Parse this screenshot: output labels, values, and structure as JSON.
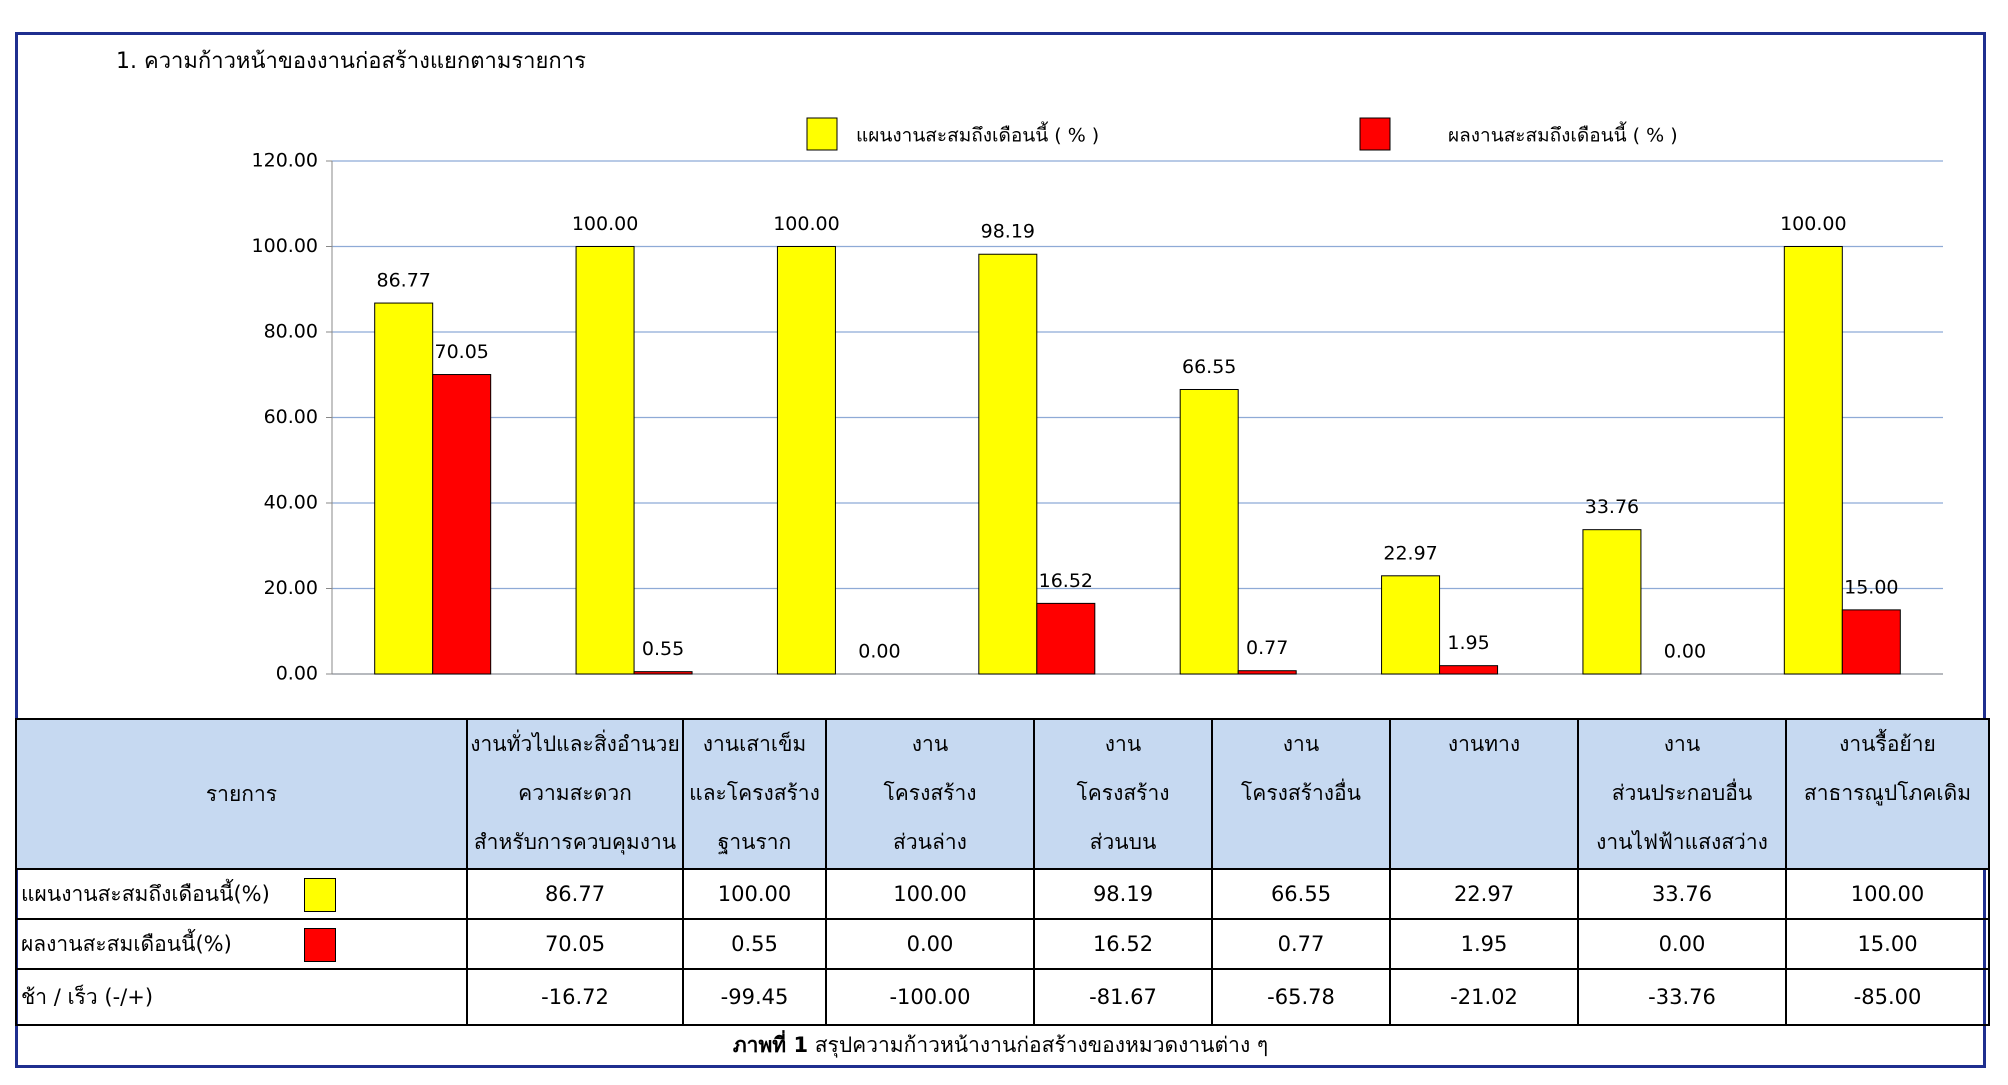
{
  "chart_data": {
    "type": "bar",
    "title": "1. ความก้าวหน้าของงานก่อสร้างแยกตามรายการ",
    "categories": [
      [
        "งานทั่วไปและสิ่งอำนวย",
        "ความสะดวก",
        "สำหรับการควบคุมงาน"
      ],
      [
        "งานเสาเข็ม",
        "และโครงสร้าง",
        "ฐานราก"
      ],
      [
        "งาน",
        "โครงสร้าง",
        "ส่วนล่าง"
      ],
      [
        "งาน",
        "โครงสร้าง",
        "ส่วนบน"
      ],
      [
        "งาน",
        "โครงสร้างอื่น"
      ],
      [
        "งานทาง"
      ],
      [
        "งาน",
        "ส่วนประกอบอื่น",
        "งานไฟฟ้าแสงสว่าง"
      ],
      [
        "งานรื้อย้าย",
        "สาธารณูปโภคเดิม"
      ]
    ],
    "series": [
      {
        "name": "แผนงานสะสมถึงเดือนนี้ ( % )",
        "color": "#ffff00",
        "values": [
          86.77,
          100,
          100,
          98.19,
          66.55,
          22.97,
          33.76,
          100
        ],
        "value_labels": [
          "86.77",
          "100.00",
          "100.00",
          "98.19",
          "66.55",
          "22.97",
          "33.76",
          "100.00"
        ]
      },
      {
        "name": "ผลงานสะสมถึงเดือนนี้ ( % )",
        "color": "#ff0000",
        "values": [
          70.05,
          0.55,
          0,
          16.52,
          0.77,
          1.95,
          0,
          15
        ],
        "value_labels": [
          "70.05",
          "0.55",
          "0.00",
          "16.52",
          "0.77",
          "1.95",
          "0.00",
          "15.00"
        ]
      }
    ],
    "ylim": [
      0,
      120
    ],
    "yticks": [
      {
        "value": 0,
        "label": "0.00"
      },
      {
        "value": 20,
        "label": "20.00"
      },
      {
        "value": 40,
        "label": "40.00"
      },
      {
        "value": 60,
        "label": "60.00"
      },
      {
        "value": 80,
        "label": "80.00"
      },
      {
        "value": 100,
        "label": "100.00"
      },
      {
        "value": 120,
        "label": "120.00"
      }
    ],
    "grid": true
  },
  "table": {
    "header": "รายการ",
    "row_labels": [
      "แผนงานสะสมถึงเดือนนี้(%)",
      "ผลงานสะสมเดือนนี้(%)",
      "ช้า / เร็ว  (-/+)"
    ],
    "diff": [
      "-16.72",
      "-99.45",
      "-100.00",
      "-81.67",
      "-65.78",
      "-21.02",
      "-33.76",
      "-85.00"
    ]
  },
  "caption": {
    "label": "ภาพที่ 1",
    "text": " สรุปความก้าวหน้างานก่อสร้างของหมวดงานต่าง ๆ"
  }
}
